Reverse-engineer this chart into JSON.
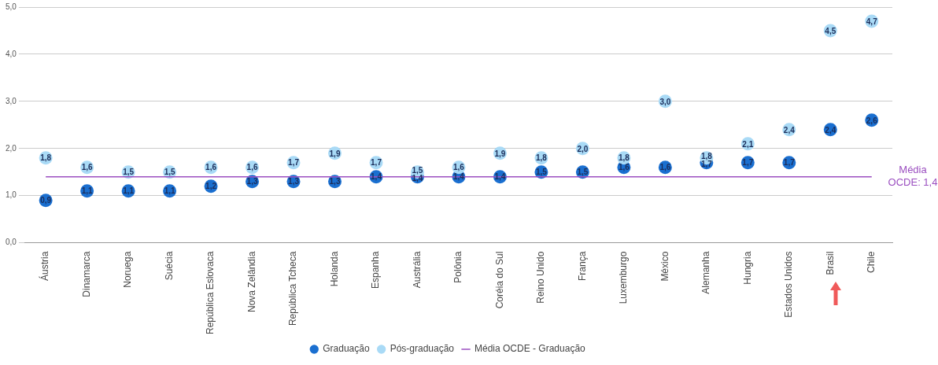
{
  "chart_data": {
    "type": "scatter",
    "categories": [
      "Áustria",
      "Dinamarca",
      "Noruega",
      "Suécia",
      "República Eslovaca",
      "Nova Zelândia",
      "República Tcheca",
      "Holanda",
      "Espanha",
      "Austrália",
      "Polônia",
      "Coréia do Sul",
      "Reino Unido",
      "França",
      "Luxemburgo",
      "México",
      "Alemanha",
      "Hungria",
      "Estados Unidos",
      "Brasil",
      "Chile"
    ],
    "series": [
      {
        "name": "Graduação",
        "color": "#1a6fd0",
        "values": [
          0.9,
          1.1,
          1.1,
          1.1,
          1.2,
          1.3,
          1.3,
          1.3,
          1.4,
          1.4,
          1.4,
          1.4,
          1.5,
          1.5,
          1.6,
          1.6,
          1.7,
          1.7,
          1.7,
          2.4,
          2.6
        ],
        "value_labels": [
          "0,9",
          "1,1",
          "1,1",
          "1,1",
          "1,2",
          "1,3",
          "1,3",
          "1,3",
          "1,4",
          "1,4",
          "1,4",
          "1,4",
          "1,5",
          "1,5",
          "1,6",
          "1,6",
          "1,7",
          "1,7",
          "1,7",
          "2,4",
          "2,6"
        ]
      },
      {
        "name": "Pós-graduação",
        "color": "#a9daf6",
        "values": [
          1.8,
          1.6,
          1.5,
          1.5,
          1.6,
          1.6,
          1.7,
          1.9,
          1.7,
          1.5,
          1.6,
          1.9,
          1.8,
          2.0,
          1.8,
          3.0,
          1.8,
          2.1,
          2.4,
          4.5,
          4.7
        ],
        "value_labels": [
          "1,8",
          "1,6",
          "1,5",
          "1,5",
          "1,6",
          "1,6",
          "1,7",
          "1,9",
          "1,7",
          "1,5",
          "1,6",
          "1,9",
          "1,8",
          "2,0",
          "1,8",
          "3,0",
          "1,8",
          "2,1",
          "2,4",
          "4,5",
          "4,7"
        ]
      },
      {
        "name": "Média OCDE - Graduação",
        "type": "line",
        "marker": "none",
        "color": "#9b4fc0",
        "values": [
          1.4,
          1.4,
          1.4,
          1.4,
          1.4,
          1.4,
          1.4,
          1.4,
          1.4,
          1.4,
          1.4,
          1.4,
          1.4,
          1.4,
          1.4,
          1.4,
          1.4,
          1.4,
          1.4,
          1.4,
          1.4
        ]
      }
    ],
    "ylim": [
      0,
      5
    ],
    "yticks": [
      {
        "value": 0,
        "label": "0,0"
      },
      {
        "value": 1,
        "label": "1,0"
      },
      {
        "value": 2,
        "label": "2,0"
      },
      {
        "value": 3,
        "label": "3,0"
      },
      {
        "value": 4,
        "label": "4,0"
      },
      {
        "value": 5,
        "label": "5,0"
      }
    ],
    "grid": "y",
    "legend": "bottom",
    "marker": "circle",
    "annotations": [
      "Média OCDE: 1,4"
    ]
  }
}
